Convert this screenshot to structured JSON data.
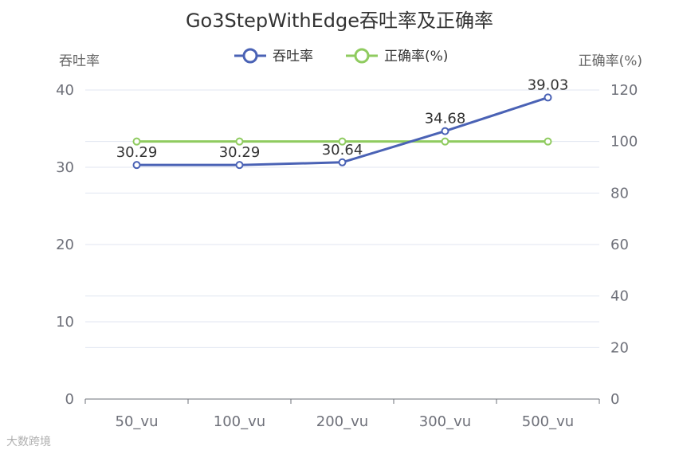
{
  "chart_data": {
    "type": "line",
    "title": "Go3StepWithEdge吞吐率及正确率",
    "categories": [
      "50_vu",
      "100_vu",
      "200_vu",
      "300_vu",
      "500_vu"
    ],
    "y_left": {
      "label": "吞吐率",
      "min": 0,
      "max": 40,
      "ticks": [
        0,
        10,
        20,
        30,
        40
      ]
    },
    "y_right": {
      "label": "正确率(%)",
      "min": 0,
      "max": 120,
      "ticks": [
        0,
        20,
        40,
        60,
        80,
        100,
        120
      ]
    },
    "series": [
      {
        "name": "吞吐率",
        "axis": "left",
        "color": "#4a62b5",
        "values": [
          30.29,
          30.29,
          30.64,
          34.68,
          39.03
        ],
        "show_labels": true
      },
      {
        "name": "正确率(%)",
        "axis": "right",
        "color": "#8fcb5f",
        "values": [
          100,
          100,
          100,
          100,
          100
        ],
        "show_labels": false
      }
    ],
    "legend_position": "top-center",
    "grid": true
  },
  "watermark": "大数跨境"
}
